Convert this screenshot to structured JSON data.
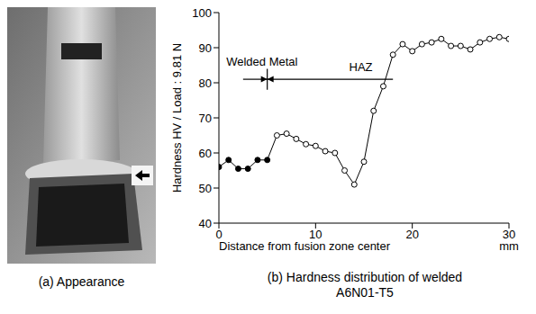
{
  "image": {
    "caption": "(a) Appearance"
  },
  "chart_data": {
    "type": "line",
    "caption": "(b) Hardness distribution of welded A6N01-T5",
    "xlabel": "Distance from fusion zone center",
    "ylabel": "Hardness HV / Load : 9.81 N",
    "x": [
      0,
      1,
      2,
      3,
      4,
      5,
      6,
      7,
      8,
      9,
      10,
      11,
      12,
      13,
      14,
      15,
      16,
      17,
      18,
      19,
      20,
      21,
      22,
      23,
      24,
      25,
      26,
      27,
      28,
      29,
      30
    ],
    "series": [
      {
        "color": "#000000",
        "marker": "filled",
        "values": [
          56,
          58,
          55.5,
          55.5,
          58,
          58,
          null,
          null,
          null,
          null,
          null,
          null,
          null,
          null,
          null,
          null,
          null,
          null,
          null,
          null,
          null,
          null,
          null,
          null,
          null,
          null,
          null,
          null,
          null,
          null,
          null
        ]
      },
      {
        "color": "#000000",
        "marker": "open",
        "values": [
          null,
          null,
          null,
          null,
          null,
          null,
          65,
          65.5,
          64,
          62.5,
          62,
          60.5,
          60,
          55,
          51,
          57.5,
          72,
          79,
          88,
          91,
          89,
          91,
          91.5,
          92.5,
          90.5,
          90.5,
          89.5,
          91.5,
          92.5,
          93,
          92.5
        ]
      }
    ],
    "xlim": [
      0,
      30
    ],
    "xticks": [
      0,
      10,
      20,
      30
    ],
    "ylim": [
      40,
      100
    ],
    "yticks": [
      40,
      50,
      60,
      70,
      80,
      90,
      100
    ],
    "annotations": [
      {
        "text": "Welded Metal",
        "x": 5
      },
      {
        "text": "HAZ",
        "x": [
          5,
          18
        ]
      },
      {
        "text": "mm"
      }
    ],
    "grid": false
  }
}
